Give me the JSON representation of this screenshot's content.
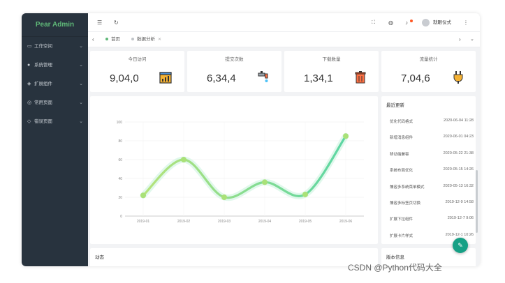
{
  "sidebar": {
    "logo": "Pear Admin",
    "items": [
      {
        "icon": "monitor-icon",
        "label": "工作空间"
      },
      {
        "icon": "gear-icon",
        "label": "系统管理"
      },
      {
        "icon": "puzzle-icon",
        "label": "扩展组件"
      },
      {
        "icon": "page-icon",
        "label": "常用页面"
      },
      {
        "icon": "shield-icon",
        "label": "错误页面"
      }
    ]
  },
  "header": {
    "username": "就眼仪式"
  },
  "tabs": {
    "items": [
      {
        "label": "首页",
        "color": "#5fb878"
      },
      {
        "label": "数据分析",
        "color": "#c0c4c8"
      }
    ]
  },
  "stats": [
    {
      "label": "今日访问",
      "value": "9,04,0",
      "icon": "chart-window-icon"
    },
    {
      "label": "提交次数",
      "value": "6,34,4",
      "icon": "faucet-icon"
    },
    {
      "label": "下载数量",
      "value": "1,34,1",
      "icon": "trash-icon"
    },
    {
      "label": "流量统计",
      "value": "7,04,6",
      "icon": "plug-icon"
    }
  ],
  "chart_data": {
    "type": "line",
    "categories": [
      "2019-01",
      "2019-02",
      "2019-03",
      "2019-04",
      "2019-05",
      "2019-06"
    ],
    "values": [
      22,
      60,
      20,
      36,
      23,
      85
    ],
    "ylim": [
      0,
      100
    ],
    "yticks": [
      "0",
      "20",
      "40",
      "60",
      "80",
      "100"
    ],
    "smooth": true,
    "grid": true,
    "line_color": "#5cd6a4",
    "point_color": "#a9e178"
  },
  "updates": {
    "title": "最近更新",
    "items": [
      {
        "label": "优化代码格式",
        "time": "2020-06-04 11:28"
      },
      {
        "label": "新增消息组件",
        "time": "2020-06-01 04:23"
      },
      {
        "label": "移动端兼容",
        "time": "2020-05-22 21:38"
      },
      {
        "label": "系统布局优化",
        "time": "2020-05-15 14:26"
      },
      {
        "label": "兼容多系统菜单模式",
        "time": "2020-05-13 16:32"
      },
      {
        "label": "兼容多标签页切换",
        "time": "2019-12-9 14:58"
      },
      {
        "label": "扩展下拉组件",
        "time": "2019-12-7 9:06"
      },
      {
        "label": "扩展卡片样式",
        "time": "2019-12-1 10:26"
      }
    ]
  },
  "bottom": {
    "left_title": "动态",
    "right_title": "版本信息"
  },
  "watermark": "CSDN @Python代码大全"
}
